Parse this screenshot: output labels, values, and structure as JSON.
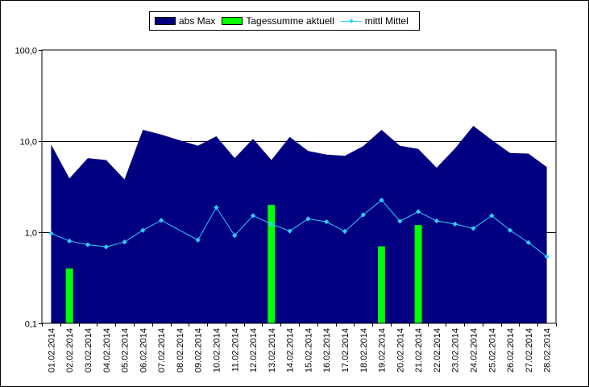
{
  "chart_data": {
    "type": "bar",
    "title": "",
    "xlabel": "",
    "ylabel": "",
    "yscale": "log",
    "ylim": [
      0.1,
      100
    ],
    "y_ticks": [
      "0,1",
      "1,0",
      "10,0",
      "100,0"
    ],
    "grid": "horizontal major lines",
    "legend": "top-center",
    "categories": [
      "01.02.2014",
      "02.02.2014",
      "03.02.2014",
      "04.02.2014",
      "05.02.2014",
      "06.02.2014",
      "07.02.2014",
      "08.02.2014",
      "09.02.2014",
      "10.02.2014",
      "11.02.2014",
      "12.02.2014",
      "13.02.2014",
      "14.02.2014",
      "15.02.2014",
      "16.02.2014",
      "17.02.2014",
      "18.02.2014",
      "19.02.2014",
      "20.02.2014",
      "21.02.2014",
      "22.02.2014",
      "23.02.2014",
      "24.02.2014",
      "25.02.2014",
      "26.02.2014",
      "27.02.2014",
      "28.02.2014"
    ],
    "series": [
      {
        "name": "abs Max",
        "kind": "area",
        "color": "#000080",
        "values": [
          9.2,
          3.9,
          6.5,
          6.2,
          3.8,
          13.3,
          11.8,
          10.2,
          8.9,
          11.3,
          6.5,
          10.6,
          6.2,
          11.1,
          7.8,
          7.1,
          6.9,
          8.8,
          13.3,
          8.9,
          8.2,
          5.1,
          8.3,
          14.7,
          10.3,
          7.4,
          7.3,
          5.2
        ]
      },
      {
        "name": "Tagessumme aktuell",
        "kind": "bar",
        "color": "#00ff00",
        "values": [
          null,
          0.4,
          null,
          null,
          null,
          null,
          null,
          null,
          null,
          null,
          null,
          null,
          2.0,
          null,
          null,
          null,
          null,
          null,
          0.7,
          null,
          1.2,
          null,
          null,
          null,
          null,
          null,
          null,
          null
        ]
      },
      {
        "name": "mittl Mittel",
        "kind": "line",
        "color": "#33ccff",
        "values": [
          0.97,
          0.8,
          0.73,
          0.69,
          0.78,
          1.05,
          1.35,
          null,
          0.82,
          1.87,
          0.92,
          1.52,
          1.23,
          1.03,
          1.4,
          1.3,
          1.02,
          1.55,
          2.25,
          1.32,
          1.68,
          1.33,
          1.23,
          1.1,
          1.52,
          1.05,
          0.77,
          0.54
        ]
      }
    ]
  }
}
